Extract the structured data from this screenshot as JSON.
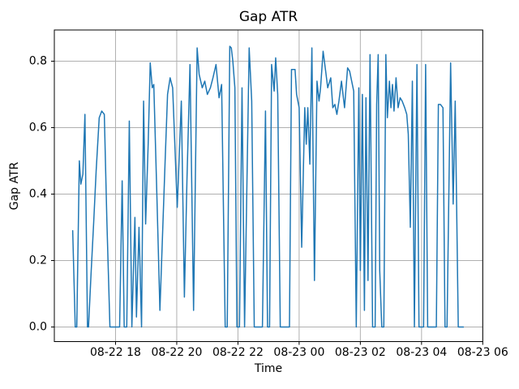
{
  "chart_data": {
    "type": "line",
    "title": "Gap ATR",
    "xlabel": "Time",
    "ylabel": "Gap ATR",
    "line_color": "#1f77b4",
    "grid": true,
    "grid_color": "#b0b0b0",
    "frame_color": "#000000",
    "legend": "none",
    "x_tick_labels": [
      "08-22 18",
      "08-22 20",
      "08-22 22",
      "08-23 00",
      "08-23 02",
      "08-23 04",
      "08-23 06"
    ],
    "y_tick_labels": [
      "0.0",
      "0.2",
      "0.4",
      "0.6",
      "0.8"
    ],
    "y_tick_values": [
      0.0,
      0.2,
      0.4,
      0.6,
      0.8
    ],
    "xlim": [
      "08-22 16:00",
      "08-23 06:00"
    ],
    "ylim": [
      -0.044,
      0.894
    ],
    "series": [
      {
        "name": "Gap ATR",
        "points": [
          [
            "08-22 16:36",
            0.29
          ],
          [
            "08-22 16:41",
            0.0
          ],
          [
            "08-22 16:44",
            0.0
          ],
          [
            "08-22 16:49",
            0.5
          ],
          [
            "08-22 16:52",
            0.43
          ],
          [
            "08-22 16:56",
            0.46
          ],
          [
            "08-22 17:00",
            0.64
          ],
          [
            "08-22 17:05",
            0.0
          ],
          [
            "08-22 17:07",
            0.0
          ],
          [
            "08-22 17:12",
            0.16
          ],
          [
            "08-22 17:17",
            0.31
          ],
          [
            "08-22 17:22",
            0.47
          ],
          [
            "08-22 17:28",
            0.63
          ],
          [
            "08-22 17:33",
            0.65
          ],
          [
            "08-22 17:38",
            0.64
          ],
          [
            "08-22 17:43",
            0.32
          ],
          [
            "08-22 17:49",
            0.0
          ],
          [
            "08-22 18:08",
            0.0
          ],
          [
            "08-22 18:13",
            0.44
          ],
          [
            "08-22 18:17",
            0.0
          ],
          [
            "08-22 18:22",
            0.0
          ],
          [
            "08-22 18:27",
            0.62
          ],
          [
            "08-22 18:32",
            0.0
          ],
          [
            "08-22 18:38",
            0.33
          ],
          [
            "08-22 18:41",
            0.03
          ],
          [
            "08-22 18:46",
            0.3
          ],
          [
            "08-22 18:51",
            0.0
          ],
          [
            "08-22 18:55",
            0.68
          ],
          [
            "08-22 18:59",
            0.31
          ],
          [
            "08-22 19:04",
            0.55
          ],
          [
            "08-22 19:08",
            0.795
          ],
          [
            "08-22 19:12",
            0.72
          ],
          [
            "08-22 19:15",
            0.73
          ],
          [
            "08-22 19:21",
            0.4
          ],
          [
            "08-22 19:27",
            0.05
          ],
          [
            "08-22 19:32",
            0.27
          ],
          [
            "08-22 19:37",
            0.49
          ],
          [
            "08-22 19:42",
            0.7
          ],
          [
            "08-22 19:47",
            0.75
          ],
          [
            "08-22 19:52",
            0.72
          ],
          [
            "08-22 20:01",
            0.36
          ],
          [
            "08-22 20:09",
            0.68
          ],
          [
            "08-22 20:15",
            0.09
          ],
          [
            "08-22 20:20",
            0.44
          ],
          [
            "08-22 20:26",
            0.79
          ],
          [
            "08-22 20:33",
            0.05
          ],
          [
            "08-22 20:40",
            0.84
          ],
          [
            "08-22 20:44",
            0.76
          ],
          [
            "08-22 20:50",
            0.72
          ],
          [
            "08-22 20:55",
            0.74
          ],
          [
            "08-22 21:00",
            0.7
          ],
          [
            "08-22 21:06",
            0.72
          ],
          [
            "08-22 21:11",
            0.75
          ],
          [
            "08-22 21:17",
            0.79
          ],
          [
            "08-22 21:23",
            0.69
          ],
          [
            "08-22 21:28",
            0.73
          ],
          [
            "08-22 21:35",
            0.0
          ],
          [
            "08-22 21:39",
            0.0
          ],
          [
            "08-22 21:44",
            0.845
          ],
          [
            "08-22 21:47",
            0.84
          ],
          [
            "08-22 21:50",
            0.8
          ],
          [
            "08-22 21:54",
            0.72
          ],
          [
            "08-22 21:58",
            0.0
          ],
          [
            "08-22 22:03",
            0.0
          ],
          [
            "08-22 22:08",
            0.72
          ],
          [
            "08-22 22:13",
            0.0
          ],
          [
            "08-22 22:22",
            0.84
          ],
          [
            "08-22 22:27",
            0.68
          ],
          [
            "08-22 22:32",
            0.0
          ],
          [
            "08-22 22:48",
            0.0
          ],
          [
            "08-22 22:54",
            0.65
          ],
          [
            "08-22 22:58",
            0.0
          ],
          [
            "08-22 23:02",
            0.0
          ],
          [
            "08-22 23:06",
            0.79
          ],
          [
            "08-22 23:11",
            0.71
          ],
          [
            "08-22 23:14",
            0.81
          ],
          [
            "08-22 23:18",
            0.7
          ],
          [
            "08-22 23:23",
            0.0
          ],
          [
            "08-22 23:41",
            0.0
          ],
          [
            "08-22 23:45",
            0.775
          ],
          [
            "08-22 23:52",
            0.775
          ],
          [
            "08-22 23:55",
            0.7
          ],
          [
            "08-23 00:00",
            0.66
          ],
          [
            "08-23 00:05",
            0.24
          ],
          [
            "08-23 00:11",
            0.66
          ],
          [
            "08-23 00:14",
            0.55
          ],
          [
            "08-23 00:17",
            0.66
          ],
          [
            "08-23 00:21",
            0.49
          ],
          [
            "08-23 00:25",
            0.84
          ],
          [
            "08-23 00:30",
            0.14
          ],
          [
            "08-23 00:35",
            0.74
          ],
          [
            "08-23 00:39",
            0.68
          ],
          [
            "08-23 00:42",
            0.72
          ],
          [
            "08-23 00:47",
            0.83
          ],
          [
            "08-23 00:52",
            0.77
          ],
          [
            "08-23 00:56",
            0.72
          ],
          [
            "08-23 01:02",
            0.75
          ],
          [
            "08-23 01:06",
            0.66
          ],
          [
            "08-23 01:10",
            0.67
          ],
          [
            "08-23 01:14",
            0.64
          ],
          [
            "08-23 01:18",
            0.68
          ],
          [
            "08-23 01:23",
            0.74
          ],
          [
            "08-23 01:29",
            0.66
          ],
          [
            "08-23 01:35",
            0.78
          ],
          [
            "08-23 01:39",
            0.77
          ],
          [
            "08-23 01:43",
            0.74
          ],
          [
            "08-23 01:47",
            0.71
          ],
          [
            "08-23 01:52",
            0.0
          ],
          [
            "08-23 01:57",
            0.72
          ],
          [
            "08-23 02:00",
            0.17
          ],
          [
            "08-23 02:04",
            0.7
          ],
          [
            "08-23 02:08",
            0.05
          ],
          [
            "08-23 02:11",
            0.69
          ],
          [
            "08-23 02:15",
            0.14
          ],
          [
            "08-23 02:19",
            0.82
          ],
          [
            "08-23 02:24",
            0.0
          ],
          [
            "08-23 02:29",
            0.0
          ],
          [
            "08-23 02:32",
            0.67
          ],
          [
            "08-23 02:35",
            0.82
          ],
          [
            "08-23 02:38",
            0.17
          ],
          [
            "08-23 02:42",
            0.0
          ],
          [
            "08-23 02:46",
            0.0
          ],
          [
            "08-23 02:50",
            0.82
          ],
          [
            "08-23 02:53",
            0.63
          ],
          [
            "08-23 02:57",
            0.74
          ],
          [
            "08-23 03:00",
            0.66
          ],
          [
            "08-23 03:03",
            0.73
          ],
          [
            "08-23 03:06",
            0.65
          ],
          [
            "08-23 03:10",
            0.75
          ],
          [
            "08-23 03:14",
            0.66
          ],
          [
            "08-23 03:18",
            0.69
          ],
          [
            "08-23 03:22",
            0.68
          ],
          [
            "08-23 03:27",
            0.66
          ],
          [
            "08-23 03:31",
            0.64
          ],
          [
            "08-23 03:34",
            0.58
          ],
          [
            "08-23 03:38",
            0.3
          ],
          [
            "08-23 03:42",
            0.74
          ],
          [
            "08-23 03:46",
            0.0
          ],
          [
            "08-23 03:51",
            0.79
          ],
          [
            "08-23 03:55",
            0.0
          ],
          [
            "08-23 04:04",
            0.0
          ],
          [
            "08-23 04:08",
            0.79
          ],
          [
            "08-23 04:12",
            0.0
          ],
          [
            "08-23 04:29",
            0.0
          ],
          [
            "08-23 04:33",
            0.67
          ],
          [
            "08-23 04:37",
            0.67
          ],
          [
            "08-23 04:42",
            0.66
          ],
          [
            "08-23 04:46",
            0.0
          ],
          [
            "08-23 04:50",
            0.0
          ],
          [
            "08-23 04:57",
            0.795
          ],
          [
            "08-23 05:02",
            0.37
          ],
          [
            "08-23 05:06",
            0.68
          ],
          [
            "08-23 05:12",
            0.0
          ],
          [
            "08-23 05:22",
            0.0
          ]
        ]
      }
    ]
  }
}
